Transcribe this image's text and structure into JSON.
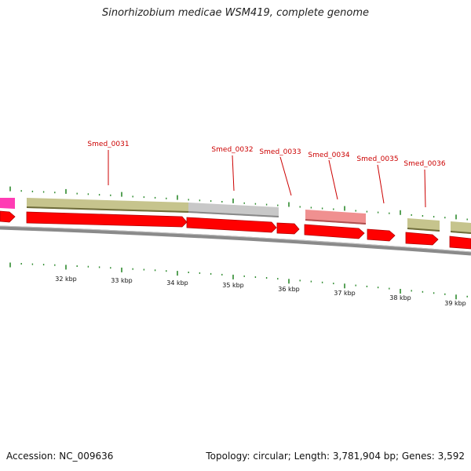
{
  "title": "Sinorhizobium medicae WSM419, complete genome",
  "accession_label": "Accession: NC_009636",
  "summary_label": "Topology: circular; Length: 3,781,904 bp; Genes: 3,592",
  "colors": {
    "gene_arrow": "#ff0000",
    "gene_arrow_dark": "#b00000",
    "feature_olive": "#c6c48d",
    "feature_gray": "#c8c8c8",
    "feature_pink": "#f09090",
    "feature_magenta": "#ff3cb4",
    "backbone": "#8a8a8a",
    "tick": "#2e8b2e",
    "label_line": "#cc0000"
  },
  "scale_labels": [
    "32 kbp",
    "33 kbp",
    "34 kbp",
    "35 kbp",
    "36 kbp",
    "37 kbp",
    "38 kbp",
    "39 kbp"
  ],
  "genes": [
    {
      "name": "Smed_0031"
    },
    {
      "name": "Smed_0032"
    },
    {
      "name": "Smed_0033"
    },
    {
      "name": "Smed_0034"
    },
    {
      "name": "Smed_0035"
    },
    {
      "name": "Smed_0036"
    }
  ]
}
